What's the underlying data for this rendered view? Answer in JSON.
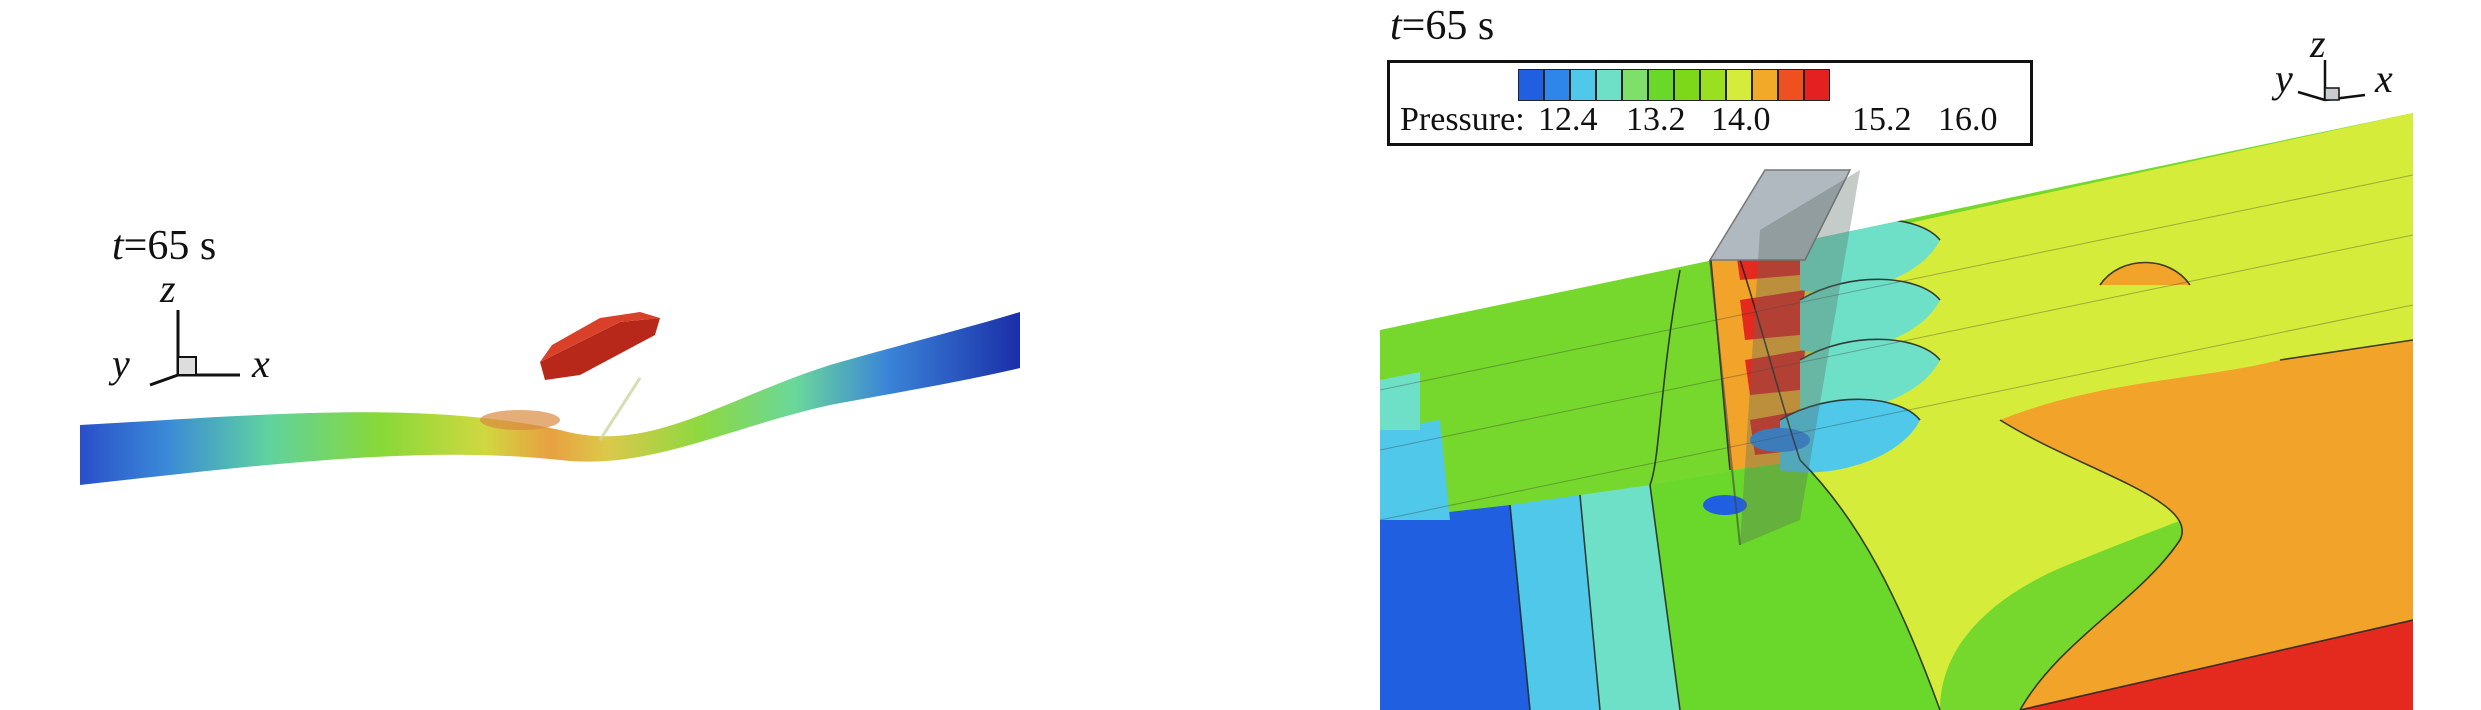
{
  "left": {
    "time_label_prefix": "t",
    "time_label_suffix": "=65 s",
    "axis": {
      "z": "z",
      "y": "y",
      "x": "x"
    }
  },
  "right": {
    "time_label_prefix": "t",
    "time_label_suffix": "=65 s",
    "axis": {
      "z": "z",
      "y": "y",
      "x": "x"
    },
    "legend": {
      "title": "Pressure:",
      "ticks": [
        "12.4",
        "13.2",
        "14.0",
        "15.2",
        "16.0"
      ],
      "colors": [
        "#1f5fe0",
        "#2f86ea",
        "#4fc8ea",
        "#6fe0c8",
        "#7ee06a",
        "#6ad82a",
        "#7ed81a",
        "#9be020",
        "#d6ec3a",
        "#f2a92a",
        "#ee5020",
        "#e52020"
      ]
    }
  },
  "colors": {
    "deep_blue": "#1f4fd0",
    "green": "#74d82c",
    "yellow": "#d8ec3c",
    "orange": "#f2a42a",
    "red": "#e42a1e",
    "ship_red": "#b8281a",
    "ship_gray": "#b0b8c0"
  }
}
